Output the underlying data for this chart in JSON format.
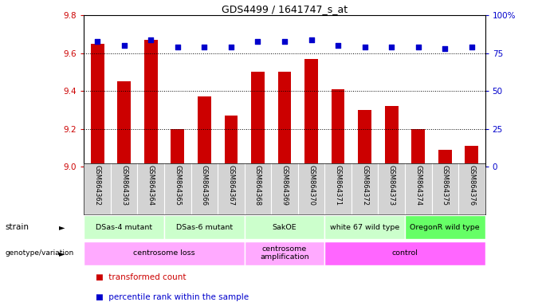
{
  "title": "GDS4499 / 1641747_s_at",
  "samples": [
    "GSM864362",
    "GSM864363",
    "GSM864364",
    "GSM864365",
    "GSM864366",
    "GSM864367",
    "GSM864368",
    "GSM864369",
    "GSM864370",
    "GSM864371",
    "GSM864372",
    "GSM864373",
    "GSM864374",
    "GSM864375",
    "GSM864376"
  ],
  "bar_values": [
    9.65,
    9.45,
    9.67,
    9.2,
    9.37,
    9.27,
    9.5,
    9.5,
    9.57,
    9.41,
    9.3,
    9.32,
    9.2,
    9.09,
    9.11
  ],
  "percentile_values": [
    83,
    80,
    84,
    79,
    79,
    79,
    83,
    83,
    84,
    80,
    79,
    79,
    79,
    78,
    79
  ],
  "ylim": [
    9.0,
    9.8
  ],
  "y2lim": [
    0,
    100
  ],
  "yticks": [
    9.0,
    9.2,
    9.4,
    9.6,
    9.8
  ],
  "y2ticks": [
    0,
    25,
    50,
    75,
    100
  ],
  "bar_color": "#cc0000",
  "dot_color": "#0000cc",
  "grid_color": "#000000",
  "strain_groups": [
    {
      "label": "DSas-4 mutant",
      "start": 0,
      "end": 2,
      "color": "#ccffcc"
    },
    {
      "label": "DSas-6 mutant",
      "start": 3,
      "end": 5,
      "color": "#ccffcc"
    },
    {
      "label": "SakOE",
      "start": 6,
      "end": 8,
      "color": "#ccffcc"
    },
    {
      "label": "white 67 wild type",
      "start": 9,
      "end": 11,
      "color": "#ccffcc"
    },
    {
      "label": "OregonR wild type",
      "start": 12,
      "end": 14,
      "color": "#66ff66"
    }
  ],
  "genotype_groups": [
    {
      "label": "centrosome loss",
      "start": 0,
      "end": 5,
      "color": "#ffaaff"
    },
    {
      "label": "centrosome\namplification",
      "start": 6,
      "end": 8,
      "color": "#ffaaff"
    },
    {
      "label": "control",
      "start": 9,
      "end": 14,
      "color": "#ff66ff"
    }
  ],
  "legend_items": [
    {
      "label": "transformed count",
      "color": "#cc0000"
    },
    {
      "label": "percentile rank within the sample",
      "color": "#0000cc"
    }
  ],
  "tick_color_left": "#cc0000",
  "tick_color_right": "#0000cc",
  "xlabel_bg_color": "#d3d3d3",
  "fig_bg": "#ffffff"
}
